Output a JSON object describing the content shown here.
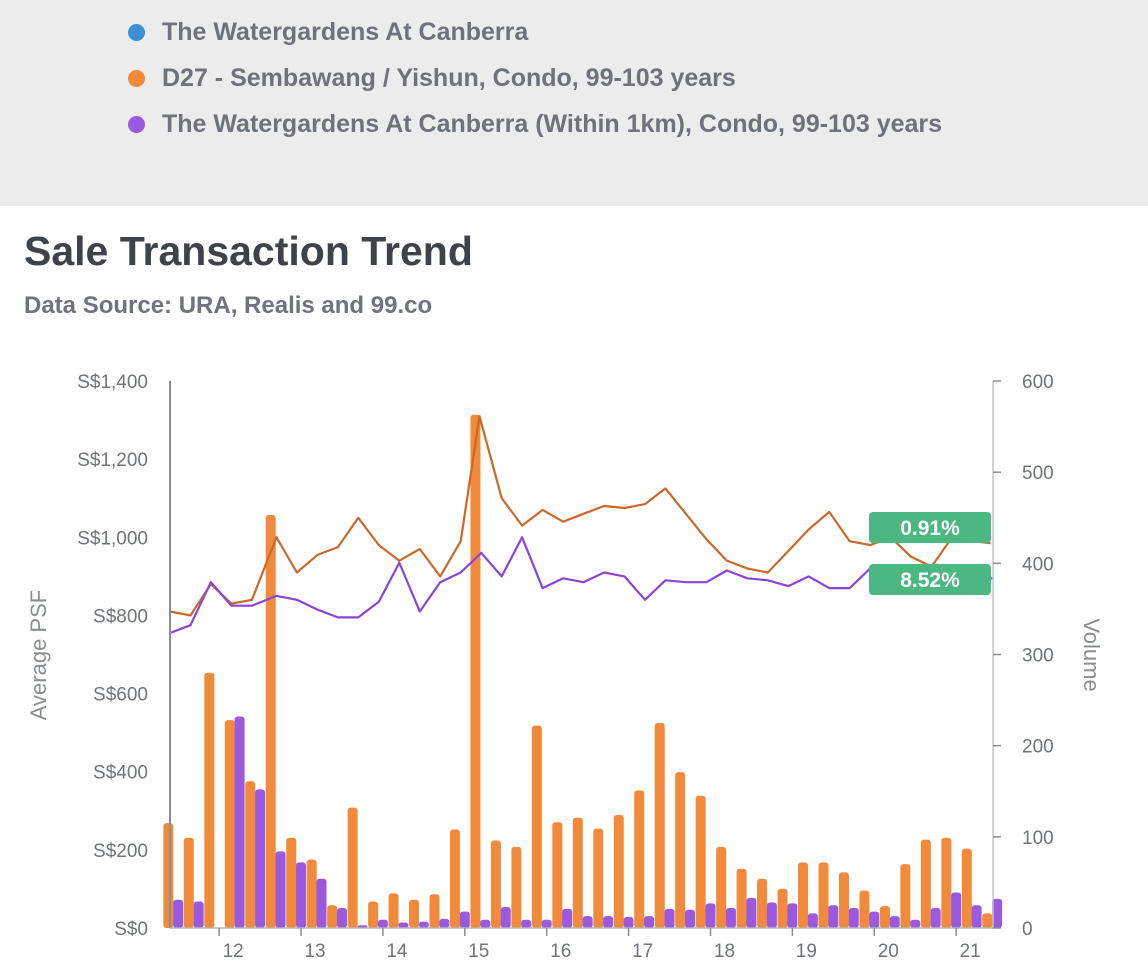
{
  "legend": {
    "items": [
      {
        "label": "The Watergardens At Canberra",
        "color": "#3a8fd6"
      },
      {
        "label": "D27 - Sembawang / Yishun, Condo, 99-103 years",
        "color": "#f28a3c"
      },
      {
        "label": "The Watergardens At Canberra (Within 1km), Condo, 99-103 years",
        "color": "#9b59e0"
      }
    ]
  },
  "header": {
    "title": "Sale Transaction Trend",
    "subtitle": "Data Source: URA, Realis and 99.co"
  },
  "chart_data": {
    "type": "bar+line",
    "x": {
      "label": "",
      "min": 11.4,
      "max": 21.45,
      "ticks": [
        "12",
        "13",
        "14",
        "15",
        "16",
        "17",
        "18",
        "19",
        "20",
        "21"
      ]
    },
    "y_left": {
      "label": "Average PSF",
      "min": 0,
      "max": 1400,
      "ticks": [
        "S$0",
        "S$200",
        "S$400",
        "S$600",
        "S$800",
        "S$1,000",
        "S$1,200",
        "S$1,400"
      ]
    },
    "y_right": {
      "label": "Volume",
      "min": 0,
      "max": 600,
      "ticks": [
        "0",
        "100",
        "200",
        "300",
        "400",
        "500",
        "600"
      ]
    },
    "colors": {
      "d27_bar": "#f28a3c",
      "d27_line": "#c9692a",
      "nearby_bar": "#9b59e0",
      "nearby_line": "#8a45d6",
      "badge": "#4cb782"
    },
    "series": [
      {
        "name": "D27 - Sembawang / Yishun, Condo, 99-103 years (Volume)",
        "kind": "bar",
        "axis": "right",
        "x": [
          11.38,
          11.63,
          11.88,
          12.13,
          12.38,
          12.63,
          12.88,
          13.13,
          13.38,
          13.63,
          13.88,
          14.13,
          14.38,
          14.63,
          14.88,
          15.13,
          15.38,
          15.63,
          15.88,
          16.13,
          16.38,
          16.63,
          16.88,
          17.13,
          17.38,
          17.63,
          17.88,
          18.13,
          18.38,
          18.63,
          18.88,
          19.13,
          19.38,
          19.63,
          19.88,
          20.13,
          20.38,
          20.63,
          20.88,
          21.13,
          21.38
        ],
        "values": [
          115,
          99,
          280,
          228,
          161,
          453,
          99,
          75,
          25,
          132,
          29,
          38,
          31,
          37,
          108,
          563,
          96,
          89,
          222,
          116,
          121,
          109,
          124,
          151,
          225,
          171,
          145,
          89,
          65,
          54,
          43,
          72,
          72,
          61,
          41,
          24,
          70,
          97,
          99,
          87,
          16
        ]
      },
      {
        "name": "The Watergardens At Canberra (Within 1km), Condo, 99-103 years (Volume)",
        "kind": "bar",
        "axis": "right",
        "x": [
          11.5,
          11.75,
          12.0,
          12.25,
          12.5,
          12.75,
          13.0,
          13.25,
          13.5,
          13.75,
          14.0,
          14.25,
          14.5,
          14.75,
          15.0,
          15.25,
          15.5,
          15.75,
          16.0,
          16.25,
          16.5,
          16.75,
          17.0,
          17.25,
          17.5,
          17.75,
          18.0,
          18.25,
          18.5,
          18.75,
          19.0,
          19.25,
          19.5,
          19.75,
          20.0,
          20.25,
          20.5,
          20.75,
          21.0,
          21.25,
          21.5
        ],
        "values": [
          31,
          29,
          0,
          232,
          152,
          84,
          72,
          54,
          22,
          3,
          9,
          6,
          7,
          10,
          18,
          9,
          23,
          9,
          9,
          21,
          13,
          13,
          12,
          13,
          21,
          20,
          27,
          22,
          33,
          28,
          27,
          16,
          25,
          22,
          18,
          13,
          9,
          22,
          39,
          25,
          32
        ]
      },
      {
        "name": "D27 - Sembawang / Yishun, Condo, 99-103 years (Average PSF)",
        "kind": "line",
        "axis": "left",
        "x": [
          11.4,
          11.65,
          11.9,
          12.15,
          12.4,
          12.7,
          12.95,
          13.2,
          13.45,
          13.7,
          13.95,
          14.2,
          14.45,
          14.7,
          14.95,
          15.18,
          15.45,
          15.7,
          15.95,
          16.2,
          16.45,
          16.7,
          16.95,
          17.2,
          17.45,
          17.7,
          17.95,
          18.2,
          18.45,
          18.7,
          18.95,
          19.2,
          19.45,
          19.7,
          19.95,
          20.2,
          20.45,
          20.7,
          20.95,
          21.2,
          21.42
        ],
        "values": [
          810,
          800,
          880,
          830,
          840,
          1000,
          910,
          955,
          975,
          1050,
          980,
          940,
          970,
          900,
          990,
          1310,
          1100,
          1030,
          1070,
          1040,
          1060,
          1080,
          1075,
          1085,
          1125,
          1060,
          995,
          940,
          920,
          910,
          965,
          1020,
          1065,
          990,
          980,
          1000,
          950,
          925,
          1000,
          990,
          985
        ]
      },
      {
        "name": "The Watergardens At Canberra (Within 1km), Condo, 99-103 years (Average PSF)",
        "kind": "line",
        "axis": "left",
        "x": [
          11.4,
          11.65,
          11.9,
          12.15,
          12.4,
          12.7,
          12.95,
          13.2,
          13.45,
          13.7,
          13.95,
          14.2,
          14.45,
          14.7,
          14.95,
          15.2,
          15.45,
          15.7,
          15.95,
          16.2,
          16.45,
          16.7,
          16.95,
          17.2,
          17.45,
          17.7,
          17.95,
          18.2,
          18.45,
          18.7,
          18.95,
          19.2,
          19.45,
          19.7,
          19.95,
          20.2,
          20.45,
          20.7,
          20.95,
          21.2,
          21.45
        ],
        "values": [
          755,
          775,
          885,
          825,
          825,
          850,
          840,
          815,
          795,
          795,
          835,
          935,
          810,
          885,
          910,
          960,
          900,
          1000,
          870,
          895,
          885,
          910,
          900,
          840,
          890,
          885,
          885,
          915,
          895,
          890,
          875,
          900,
          870,
          870,
          920,
          870,
          860,
          860,
          890,
          895,
          895
        ]
      }
    ],
    "annotations": [
      {
        "text": "0.91%",
        "series": "D27 - Sembawang / Yishun",
        "color": "#4cb782"
      },
      {
        "text": "8.52%",
        "series": "The Watergardens At Canberra (Within 1km)",
        "color": "#4cb782"
      }
    ]
  }
}
